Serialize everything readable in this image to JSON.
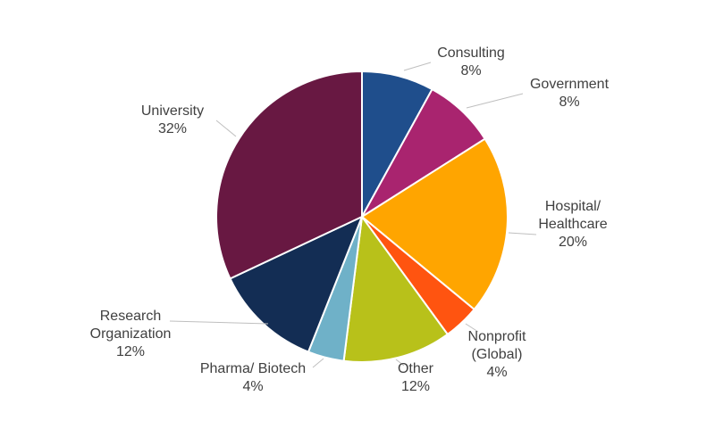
{
  "chart_data": {
    "type": "pie",
    "start_angle_deg": 0,
    "direction": "clockwise",
    "slices": [
      {
        "name": "Consulting",
        "label_lines": [
          "Consulting"
        ],
        "value": 8,
        "value_label": "8%",
        "color": "#1f4e8c"
      },
      {
        "name": "Government",
        "label_lines": [
          "Government"
        ],
        "value": 8,
        "value_label": "8%",
        "color": "#a9246f"
      },
      {
        "name": "Hospital/ Healthcare",
        "label_lines": [
          "Hospital/",
          "Healthcare"
        ],
        "value": 20,
        "value_label": "20%",
        "color": "#ffa500"
      },
      {
        "name": "Nonprofit (Global)",
        "label_lines": [
          "Nonprofit",
          "(Global)"
        ],
        "value": 4,
        "value_label": "4%",
        "color": "#ff5410"
      },
      {
        "name": "Other",
        "label_lines": [
          "Other"
        ],
        "value": 12,
        "value_label": "12%",
        "color": "#b8c11a"
      },
      {
        "name": "Pharma/ Biotech",
        "label_lines": [
          "Pharma/ Biotech"
        ],
        "value": 4,
        "value_label": "4%",
        "color": "#6fb1c8"
      },
      {
        "name": "Research Organization",
        "label_lines": [
          "Research",
          "Organization"
        ],
        "value": 12,
        "value_label": "12%",
        "color": "#132d54"
      },
      {
        "name": "University",
        "label_lines": [
          "University"
        ],
        "value": 32,
        "value_label": "32%",
        "color": "#681842"
      }
    ]
  }
}
